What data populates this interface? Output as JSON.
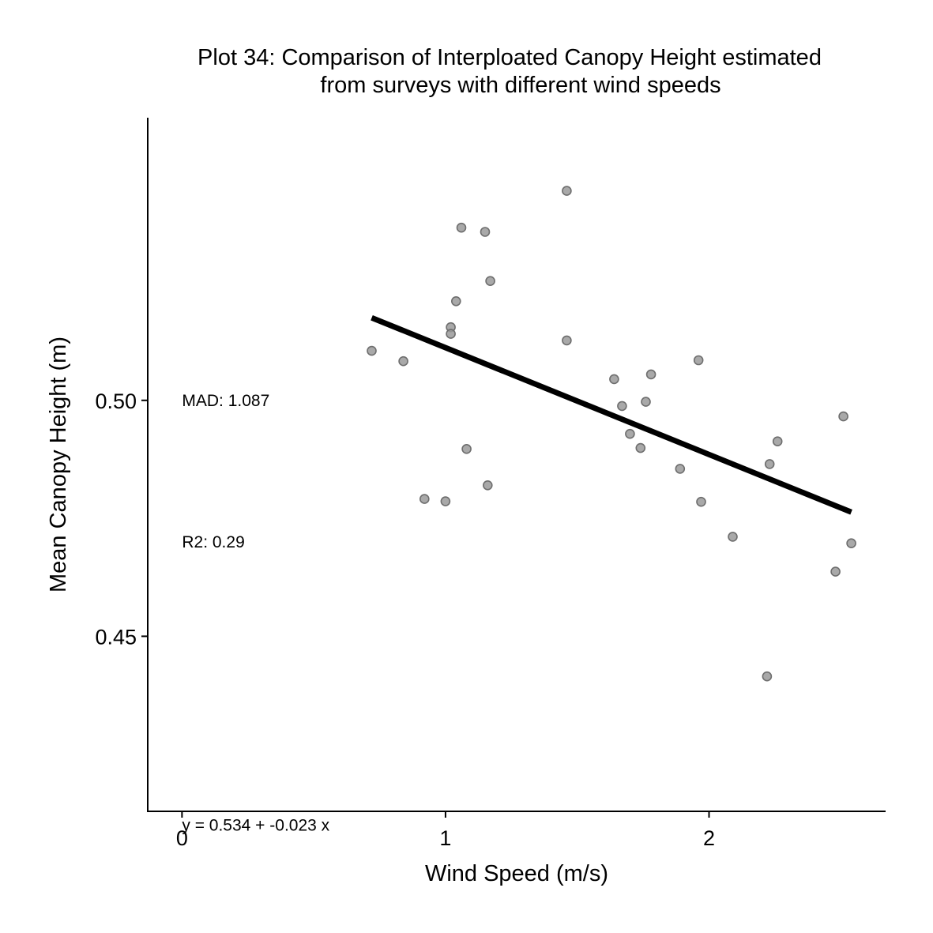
{
  "chart_data": {
    "type": "scatter",
    "title_lines": [
      "Plot 34: Comparison of Interploated Canopy Height estimated",
      "from surveys with different wind speeds"
    ],
    "xlabel": "Wind Speed (m/s)",
    "ylabel": "Mean Canopy Height (m)",
    "xlim": [
      -0.13,
      2.67
    ],
    "ylim": [
      0.4129,
      0.5599
    ],
    "x_ticks": [
      {
        "value": 0,
        "label": "0"
      },
      {
        "value": 1,
        "label": "1"
      },
      {
        "value": 2,
        "label": "2"
      }
    ],
    "y_ticks": [
      {
        "value": 0.45,
        "label": "0.45"
      },
      {
        "value": 0.5,
        "label": "0.50"
      }
    ],
    "grid": false,
    "legend": "none",
    "points_color": "#9a9a9a",
    "points_edge_color": "#6e6e6e",
    "line_color": "#000000",
    "points": [
      {
        "x": 0.72,
        "y": 0.5105
      },
      {
        "x": 0.84,
        "y": 0.5083
      },
      {
        "x": 0.92,
        "y": 0.4791
      },
      {
        "x": 1.0,
        "y": 0.4786
      },
      {
        "x": 1.02,
        "y": 0.5155
      },
      {
        "x": 1.02,
        "y": 0.5141
      },
      {
        "x": 1.04,
        "y": 0.521
      },
      {
        "x": 1.06,
        "y": 0.5366
      },
      {
        "x": 1.08,
        "y": 0.4897
      },
      {
        "x": 1.15,
        "y": 0.5357
      },
      {
        "x": 1.16,
        "y": 0.482
      },
      {
        "x": 1.17,
        "y": 0.5253
      },
      {
        "x": 1.46,
        "y": 0.5444
      },
      {
        "x": 1.46,
        "y": 0.5127
      },
      {
        "x": 1.64,
        "y": 0.5045
      },
      {
        "x": 1.67,
        "y": 0.4988
      },
      {
        "x": 1.7,
        "y": 0.4929
      },
      {
        "x": 1.74,
        "y": 0.4899
      },
      {
        "x": 1.76,
        "y": 0.4997
      },
      {
        "x": 1.78,
        "y": 0.5055
      },
      {
        "x": 1.89,
        "y": 0.4855
      },
      {
        "x": 1.96,
        "y": 0.5085
      },
      {
        "x": 1.97,
        "y": 0.4785
      },
      {
        "x": 2.09,
        "y": 0.4711
      },
      {
        "x": 2.22,
        "y": 0.4415
      },
      {
        "x": 2.23,
        "y": 0.4865
      },
      {
        "x": 2.26,
        "y": 0.4913
      },
      {
        "x": 2.48,
        "y": 0.4637
      },
      {
        "x": 2.51,
        "y": 0.4966
      },
      {
        "x": 2.54,
        "y": 0.4697
      }
    ],
    "fit_line": {
      "x": [
        0.72,
        2.54
      ],
      "y": [
        0.5175,
        0.4763
      ]
    },
    "annotations": [
      {
        "text": "MAD: 1.087",
        "x": 0,
        "y": 0.5
      },
      {
        "text": "R2: 0.29",
        "x": 0,
        "y": 0.47
      },
      {
        "text": "y =  0.534 + -0.023 x",
        "x": 0,
        "y": 0.41
      }
    ]
  }
}
